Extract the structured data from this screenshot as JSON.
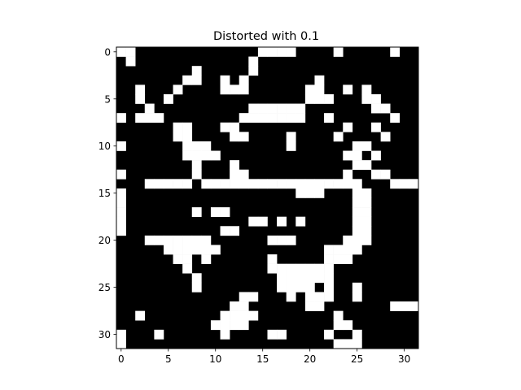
{
  "chart_data": {
    "type": "heatmap",
    "title": "Distorted with 0.1",
    "xlabel": "",
    "ylabel": "",
    "xlim": [
      -0.5,
      31.5
    ],
    "ylim": [
      31.5,
      -0.5
    ],
    "x_ticks": [
      0,
      5,
      10,
      15,
      20,
      25,
      30
    ],
    "y_ticks": [
      0,
      5,
      10,
      15,
      20,
      25,
      30
    ],
    "grid": false,
    "colormap": {
      "0": "#000000",
      "1": "#ffffff"
    },
    "rows": [
      "11000000000000011110000100000100",
      "01000000000000100000000000000000",
      "00000000100000100000000000000000",
      "00000001100101000000010000000000",
      "00100010000111000000110010100000",
      "00100100000000000000111000110000",
      "00010000000000111111000000011000",
      "10111000000001111111001000000100",
      "00000011000110000000000010010000",
      "00000011000011000010000100001000",
      "10000001110000000010000001100000",
      "00000001111000000000000011010000",
      "00000000100010000000000001100000",
      "10000000100011000000000010011000",
      "00011111011111111111111111000111",
      "10000000000000000001110001100000",
      "10000000000000000000000001100000",
      "10000000101100000000000001100000",
      "10000000000000110101000001100000",
      "10000000000110000000000001100000",
      "00011111110000001110000011100000",
      "00000111111000000000001111000000",
      "00000011010000001000001110000000",
      "00000001000000001111111000000000",
      "00000000100000000111111000000000",
      "00000000100000000111101001000000",
      "00000000000001100010111001000000",
      "00000000000011000000110000000111",
      "00100000000111100000000100000000",
      "00000000001111000000000110000000",
      "10001000000100001100001001000000",
      "10000000000000000000000111000000"
    ]
  }
}
